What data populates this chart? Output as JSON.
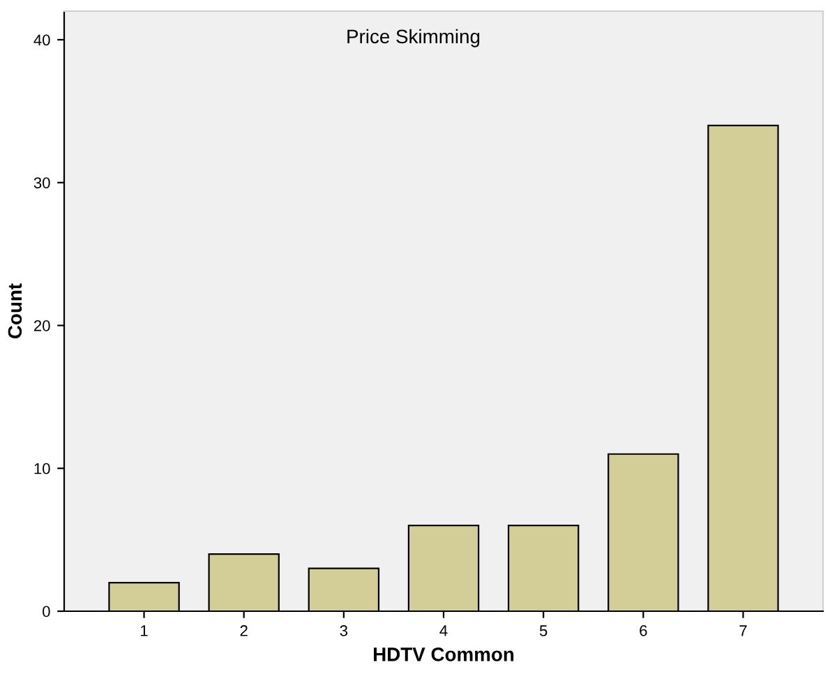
{
  "chart_data": {
    "type": "bar",
    "title": "Price Skimming",
    "xlabel": "HDTV Common",
    "ylabel": "Count",
    "categories": [
      "1",
      "2",
      "3",
      "4",
      "5",
      "6",
      "7"
    ],
    "values": [
      2,
      4,
      3,
      6,
      6,
      11,
      34
    ],
    "color": "#d3ce97",
    "ylim": [
      0,
      42
    ],
    "yticks": [
      0,
      10,
      20,
      30,
      40
    ],
    "grid": false,
    "legend": false
  }
}
